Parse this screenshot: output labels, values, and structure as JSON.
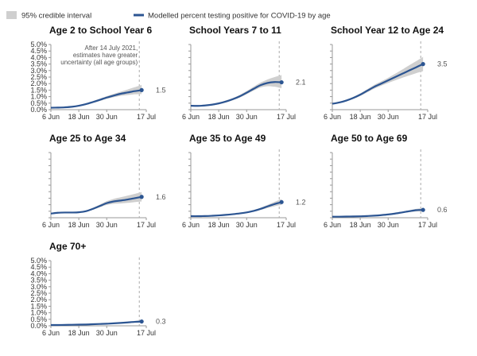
{
  "legend": {
    "interval_label": "95% credible interval",
    "line_label": "Modelled percent testing positive for COVID-19 by age"
  },
  "colors": {
    "line": "#2c5592",
    "band": "#cfcfcf",
    "axis": "#999999",
    "vline": "#aaaaaa"
  },
  "annotation": {
    "lines": [
      "After 14 July 2021,",
      "estimates have greater",
      "uncertainty (all age groups)"
    ]
  },
  "chart_data": [
    {
      "type": "line",
      "title": "Age 2 to School Year 6",
      "x_tick_labels": [
        "6 Jun",
        "18 Jun",
        "30 Jun",
        "17 Jul"
      ],
      "y_tick_labels": [
        "0.0%",
        "0.5%",
        "1.0%",
        "1.5%",
        "2.0%",
        "2.5%",
        "3.0%",
        "3.5%",
        "4.0%",
        "4.5%",
        "5.0%"
      ],
      "ylim": [
        0,
        5
      ],
      "x_days": [
        0,
        3,
        6,
        9,
        12,
        15,
        18,
        21,
        24,
        27,
        30,
        33,
        36,
        39
      ],
      "values": [
        0.15,
        0.16,
        0.18,
        0.22,
        0.3,
        0.42,
        0.58,
        0.75,
        0.93,
        1.08,
        1.22,
        1.32,
        1.42,
        1.5
      ],
      "lower": [
        0.12,
        0.13,
        0.15,
        0.18,
        0.25,
        0.36,
        0.5,
        0.66,
        0.82,
        0.95,
        1.06,
        1.12,
        1.18,
        1.2
      ],
      "upper": [
        0.18,
        0.19,
        0.21,
        0.26,
        0.35,
        0.48,
        0.66,
        0.84,
        1.04,
        1.21,
        1.38,
        1.55,
        1.72,
        1.9
      ],
      "end_label": "1.5"
    },
    {
      "type": "line",
      "title": "School Years 7 to 11",
      "x_tick_labels": [
        "6 Jun",
        "18 Jun",
        "30 Jun",
        "17 Jul"
      ],
      "ylim": [
        0,
        5
      ],
      "x_days": [
        0,
        3,
        6,
        9,
        12,
        15,
        18,
        21,
        24,
        27,
        30,
        33,
        36,
        39
      ],
      "values": [
        0.3,
        0.29,
        0.32,
        0.38,
        0.48,
        0.62,
        0.8,
        1.02,
        1.3,
        1.6,
        1.88,
        2.05,
        2.12,
        2.1
      ],
      "lower": [
        0.26,
        0.25,
        0.28,
        0.33,
        0.42,
        0.55,
        0.72,
        0.92,
        1.18,
        1.46,
        1.7,
        1.8,
        1.76,
        1.65
      ],
      "upper": [
        0.34,
        0.33,
        0.36,
        0.43,
        0.54,
        0.7,
        0.89,
        1.13,
        1.43,
        1.76,
        2.08,
        2.32,
        2.5,
        2.65
      ],
      "end_label": "2.1"
    },
    {
      "type": "line",
      "title": "School Year 12 to Age 24",
      "x_tick_labels": [
        "6 Jun",
        "18 Jun",
        "30 Jun",
        "17 Jul"
      ],
      "ylim": [
        0,
        5
      ],
      "x_days": [
        0,
        3,
        6,
        9,
        12,
        15,
        18,
        21,
        24,
        27,
        30,
        33,
        36,
        39
      ],
      "values": [
        0.45,
        0.55,
        0.7,
        0.9,
        1.15,
        1.45,
        1.75,
        2.0,
        2.25,
        2.5,
        2.75,
        3.0,
        3.25,
        3.5
      ],
      "lower": [
        0.4,
        0.49,
        0.63,
        0.82,
        1.05,
        1.33,
        1.61,
        1.84,
        2.05,
        2.25,
        2.44,
        2.62,
        2.8,
        2.95
      ],
      "upper": [
        0.5,
        0.61,
        0.77,
        0.98,
        1.25,
        1.57,
        1.9,
        2.17,
        2.45,
        2.75,
        3.07,
        3.4,
        3.72,
        4.05
      ],
      "end_label": "3.5"
    },
    {
      "type": "line",
      "title": "Age 25 to Age 34",
      "x_tick_labels": [
        "6 Jun",
        "18 Jun",
        "30 Jun",
        "17 Jul"
      ],
      "ylim": [
        0,
        5
      ],
      "x_days": [
        0,
        3,
        6,
        9,
        12,
        15,
        18,
        21,
        24,
        27,
        30,
        33,
        36,
        39
      ],
      "values": [
        0.32,
        0.38,
        0.4,
        0.4,
        0.42,
        0.5,
        0.68,
        0.9,
        1.12,
        1.25,
        1.32,
        1.4,
        1.5,
        1.6
      ],
      "lower": [
        0.28,
        0.34,
        0.36,
        0.36,
        0.38,
        0.45,
        0.61,
        0.8,
        0.98,
        1.07,
        1.1,
        1.14,
        1.2,
        1.25
      ],
      "upper": [
        0.36,
        0.42,
        0.44,
        0.44,
        0.47,
        0.56,
        0.76,
        1.01,
        1.27,
        1.45,
        1.57,
        1.7,
        1.83,
        1.97
      ],
      "end_label": "1.6"
    },
    {
      "type": "line",
      "title": "Age 35 to Age 49",
      "x_tick_labels": [
        "6 Jun",
        "18 Jun",
        "30 Jun",
        "17 Jul"
      ],
      "ylim": [
        0,
        5
      ],
      "x_days": [
        0,
        3,
        6,
        9,
        12,
        15,
        18,
        21,
        24,
        27,
        30,
        33,
        36,
        39
      ],
      "values": [
        0.12,
        0.12,
        0.13,
        0.15,
        0.18,
        0.22,
        0.27,
        0.33,
        0.41,
        0.52,
        0.68,
        0.87,
        1.05,
        1.2
      ],
      "lower": [
        0.1,
        0.1,
        0.11,
        0.13,
        0.16,
        0.2,
        0.24,
        0.29,
        0.36,
        0.46,
        0.6,
        0.75,
        0.88,
        0.98
      ],
      "upper": [
        0.14,
        0.14,
        0.15,
        0.17,
        0.2,
        0.24,
        0.3,
        0.37,
        0.46,
        0.59,
        0.77,
        0.99,
        1.22,
        1.43
      ],
      "end_label": "1.2"
    },
    {
      "type": "line",
      "title": "Age 50 to Age 69",
      "x_tick_labels": [
        "6 Jun",
        "18 Jun",
        "30 Jun",
        "17 Jul"
      ],
      "ylim": [
        0,
        5
      ],
      "x_days": [
        0,
        3,
        6,
        9,
        12,
        15,
        18,
        21,
        24,
        27,
        30,
        33,
        36,
        39
      ],
      "values": [
        0.08,
        0.08,
        0.09,
        0.1,
        0.11,
        0.13,
        0.16,
        0.2,
        0.25,
        0.32,
        0.41,
        0.5,
        0.58,
        0.6
      ],
      "lower": [
        0.07,
        0.07,
        0.08,
        0.09,
        0.1,
        0.12,
        0.14,
        0.18,
        0.22,
        0.28,
        0.36,
        0.43,
        0.48,
        0.48
      ],
      "upper": [
        0.09,
        0.09,
        0.1,
        0.11,
        0.12,
        0.14,
        0.18,
        0.22,
        0.28,
        0.36,
        0.46,
        0.57,
        0.68,
        0.74
      ],
      "end_label": "0.6"
    },
    {
      "type": "line",
      "title": "Age 70+",
      "x_tick_labels": [
        "6 Jun",
        "18 Jun",
        "30 Jun",
        "17 Jul"
      ],
      "y_tick_labels": [
        "0.0%",
        "0.5%",
        "1.0%",
        "1.5%",
        "2.0%",
        "2.5%",
        "3.0%",
        "3.5%",
        "4.0%",
        "4.5%",
        "5.0%"
      ],
      "ylim": [
        0,
        5
      ],
      "x_days": [
        0,
        3,
        6,
        9,
        12,
        15,
        18,
        21,
        24,
        27,
        30,
        33,
        36,
        39
      ],
      "values": [
        0.06,
        0.06,
        0.07,
        0.08,
        0.09,
        0.1,
        0.12,
        0.14,
        0.16,
        0.19,
        0.22,
        0.26,
        0.3,
        0.33
      ],
      "lower": [
        0.05,
        0.05,
        0.06,
        0.07,
        0.08,
        0.09,
        0.1,
        0.12,
        0.14,
        0.16,
        0.19,
        0.22,
        0.24,
        0.26
      ],
      "upper": [
        0.07,
        0.07,
        0.08,
        0.09,
        0.1,
        0.11,
        0.14,
        0.16,
        0.18,
        0.22,
        0.26,
        0.31,
        0.37,
        0.42
      ],
      "end_label": "0.3"
    }
  ]
}
